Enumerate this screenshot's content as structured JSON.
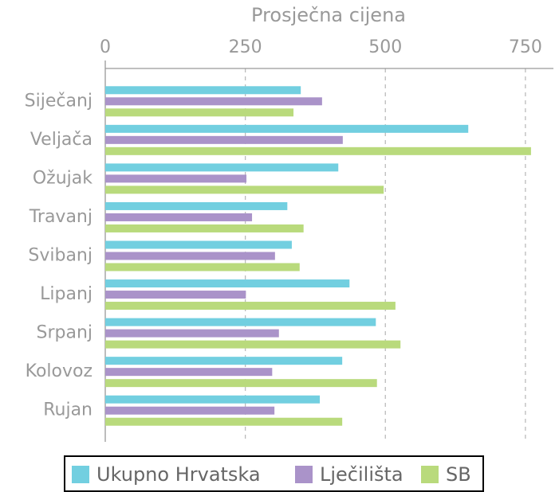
{
  "chart_data": {
    "type": "barh",
    "x_label": "Prosječna cijena",
    "categories": [
      "Siječanj",
      "Veljača",
      "Ožujak",
      "Travanj",
      "Svibanj",
      "Lipanj",
      "Srpanj",
      "Kolovoz",
      "Rujan"
    ],
    "series": [
      {
        "name": "Ukupno Hrvatska",
        "color": "#72cfe0",
        "values": [
          349,
          648,
          416,
          325,
          333,
          436,
          483,
          423,
          383
        ]
      },
      {
        "name": "Lječilišta",
        "color": "#aa93c9",
        "values": [
          387,
          424,
          252,
          262,
          303,
          251,
          310,
          298,
          302
        ]
      },
      {
        "name": "SB",
        "color": "#b9da7c",
        "values": [
          336,
          760,
          497,
          354,
          347,
          518,
          527,
          485,
          423
        ]
      }
    ],
    "xlim": [
      0,
      800
    ],
    "xticks": [
      0,
      250,
      500,
      750
    ],
    "grid": true,
    "legend": "bottom"
  }
}
